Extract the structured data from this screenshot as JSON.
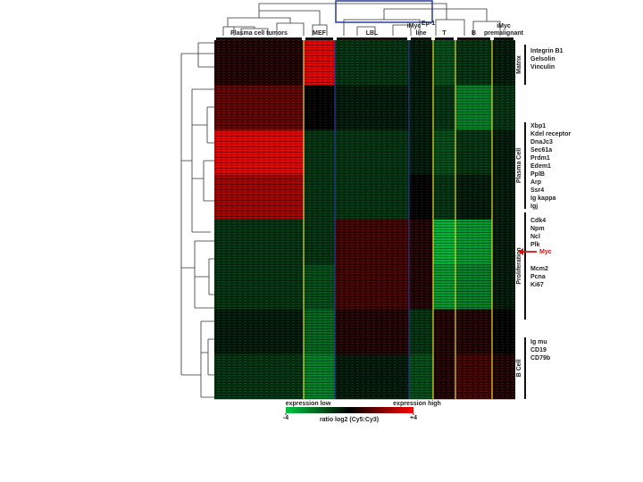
{
  "figure": {
    "column_groups": [
      {
        "label": "Plasma cell tumors"
      },
      {
        "label": "MEF"
      },
      {
        "label": "LBL"
      },
      {
        "label": "iMyc",
        "superscript": "Eμ-1",
        "label_line2": "line"
      },
      {
        "label": "T"
      },
      {
        "label": "B"
      },
      {
        "label": "iMyc",
        "label_line2": "premalignant"
      }
    ],
    "heatmap_row_bands": [
      {
        "values": [
          0.5,
          3.5,
          -1,
          -0.5,
          -1.5,
          -1,
          -0.5
        ]
      },
      {
        "values": [
          1.5,
          0,
          -0.5,
          -0.5,
          -1,
          -2.5,
          -1
        ]
      },
      {
        "values": [
          3.5,
          -1,
          -1,
          -0.5,
          -1.5,
          -1,
          -0.5
        ]
      },
      {
        "values": [
          2.5,
          -1,
          -1,
          0,
          -1,
          -0.5,
          -0.5
        ]
      },
      {
        "values": [
          -1,
          -1,
          1,
          0.5,
          -3.5,
          -3,
          -0.5
        ]
      },
      {
        "values": [
          -1,
          -1.5,
          1,
          0.5,
          -3,
          -2.5,
          -0.5
        ]
      },
      {
        "values": [
          -0.5,
          -2,
          0.5,
          -1,
          0.5,
          0.5,
          0
        ]
      },
      {
        "values": [
          -1,
          -2.5,
          -0.5,
          -1.5,
          0.5,
          1,
          0.5
        ]
      }
    ],
    "gene_groups": [
      {
        "label": "Matrix",
        "genes": [
          "Integrin B1",
          "Gelsolin",
          "Vinculin"
        ]
      },
      {
        "label": "Plasma Cell",
        "genes": [
          "Xbp1",
          "Kdel receptor",
          "DnaJc3",
          "Sec61a",
          "Prdm1",
          "Edem1",
          "PplB",
          "Arp",
          "Ssr4",
          "Ig kappa",
          "Igj"
        ]
      },
      {
        "label": "Proliferation",
        "genes": [
          "Cdk4",
          "Npm",
          "Ncl",
          "Plk",
          "Mcm2",
          "Pcna",
          "Ki67"
        ],
        "highlight": "Myc"
      },
      {
        "label": "B Cell",
        "genes": [
          "Ig mu",
          "CD19",
          "CD79b"
        ]
      }
    ],
    "colorbar": {
      "low_label": "expression low",
      "high_label": "expression high",
      "title": "ratio log2 (Cy5:Cy3)",
      "ticks": [
        -4,
        {
          "value": 4,
          "label": "+4"
        }
      ]
    }
  }
}
